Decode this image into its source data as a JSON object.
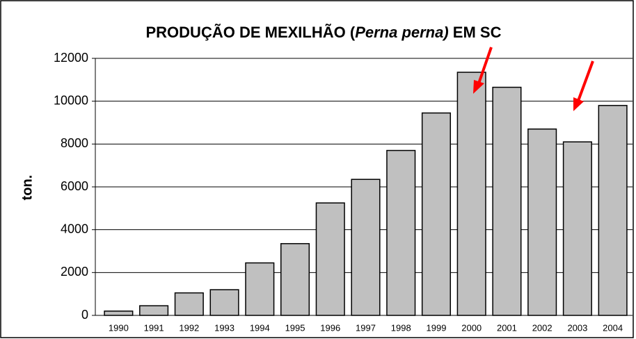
{
  "chart_data": {
    "type": "bar",
    "title": [
      "PRODUÇÃO DE MEXILHÃO (",
      "Perna perna)",
      " EM SC"
    ],
    "y_label": "ton.",
    "categories": [
      "1990",
      "1991",
      "1992",
      "1993",
      "1994",
      "1995",
      "1996",
      "1997",
      "1998",
      "1999",
      "2000",
      "2001",
      "2002",
      "2003",
      "2004"
    ],
    "values": [
      200,
      450,
      1050,
      1200,
      2450,
      3350,
      5250,
      6350,
      7700,
      9450,
      11350,
      10650,
      8700,
      8100,
      9800
    ],
    "color": "#c0c0c0",
    "ylim": [
      0,
      12000
    ],
    "yticks": [
      0,
      2000,
      4000,
      6000,
      8000,
      10000,
      12000
    ],
    "grid": true
  }
}
